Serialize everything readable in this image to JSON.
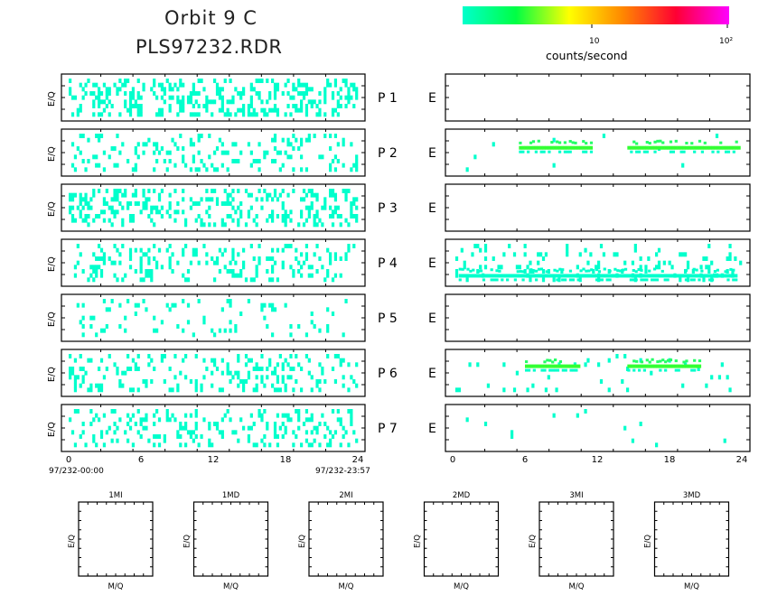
{
  "header": {
    "title": "Orbit 9 C",
    "subtitle": "PLS97232.RDR"
  },
  "colorbar": {
    "colors": [
      "#00ffcc",
      "#00ff44",
      "#ffff00",
      "#ff8800",
      "#ff0033",
      "#ff00ff"
    ],
    "tick_labels": [
      "10",
      "10²"
    ],
    "label": "counts/second"
  },
  "chart_data": [
    {
      "type": "heatmap",
      "side": "left",
      "ylabel": "E/Q",
      "x_ticks": [
        "0",
        "6",
        "12",
        "18",
        "24"
      ],
      "xlim": [
        0,
        24
      ],
      "start_label": "97/232-00:00",
      "end_label": "97/232-23:57",
      "panels": [
        {
          "label": "P 1",
          "density": 0.32,
          "level": 1
        },
        {
          "label": "P 2",
          "density": 0.18,
          "level": 1
        },
        {
          "label": "P 3",
          "density": 0.28,
          "level": 1
        },
        {
          "label": "P 4",
          "density": 0.2,
          "level": 1
        },
        {
          "label": "P 5",
          "density": 0.08,
          "level": 1
        },
        {
          "label": "P 6",
          "density": 0.2,
          "level": 1
        },
        {
          "label": "P 7",
          "density": 0.2,
          "level": 1
        }
      ]
    },
    {
      "type": "heatmap",
      "side": "right",
      "axis_letter": "E",
      "x_ticks": [
        "0",
        "6",
        "12",
        "18",
        "24"
      ],
      "xlim": [
        0,
        24
      ],
      "panels": [
        {
          "label": "P 1",
          "density": 0.0,
          "band": null
        },
        {
          "label": "P 2",
          "density": 0.01,
          "band": {
            "y": 0.35,
            "segments": [
              [
                5.5,
                11.5
              ],
              [
                14.5,
                23.8
              ]
            ],
            "bright": true
          }
        },
        {
          "label": "P 3",
          "density": 0.0,
          "band": null
        },
        {
          "label": "P 4",
          "density": 0.12,
          "band": {
            "y": 0.82,
            "segments": [
              [
                0.5,
                23.5
              ]
            ],
            "bright": false
          }
        },
        {
          "label": "P 5",
          "density": 0.0,
          "band": null
        },
        {
          "label": "P 6",
          "density": 0.04,
          "band": {
            "y": 0.3,
            "segments": [
              [
                6.0,
                10.5
              ],
              [
                14.5,
                20.5
              ]
            ],
            "bright": true
          }
        },
        {
          "label": "P 7",
          "density": 0.01,
          "band": null
        }
      ]
    },
    {
      "type": "heatmap",
      "small_panels": [
        "1MI",
        "1MD",
        "2MI",
        "2MD",
        "3MI",
        "3MD"
      ],
      "xlabel": "M/Q",
      "ylabel": "E/Q"
    }
  ]
}
